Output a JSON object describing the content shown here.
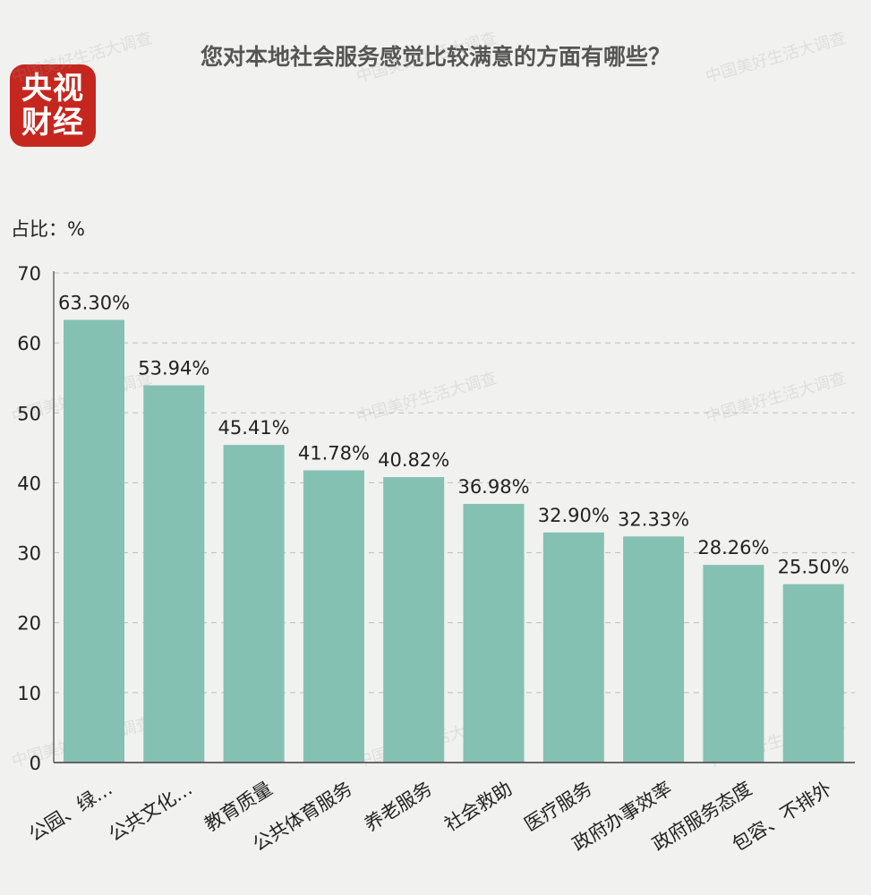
{
  "header": {
    "title": "您对本地社会服务感觉比较满意的方面有哪些？",
    "logo_line1": "央视",
    "logo_line2": "财经",
    "unit_label": "占比：%",
    "watermark": "中国美好生活大调查"
  },
  "colors": {
    "bar": "#84c1b3",
    "logo_bg": "#c5271f",
    "background": "#f1f1ef"
  },
  "chart_data": {
    "type": "bar",
    "title": "您对本地社会服务感觉比较满意的方面有哪些？",
    "ylabel": "占比：%",
    "ylim": [
      0,
      70
    ],
    "yticks": [
      0,
      10,
      20,
      30,
      40,
      50,
      60,
      70
    ],
    "grid": true,
    "categories": [
      "公园、绿…",
      "公共文化…",
      "教育质量",
      "公共体育服务",
      "养老服务",
      "社会救助",
      "医疗服务",
      "政府办事效率",
      "政府服务态度",
      "包容、不排外"
    ],
    "values": [
      63.3,
      53.94,
      45.41,
      41.78,
      40.82,
      36.98,
      32.9,
      32.33,
      28.26,
      25.5
    ],
    "data_labels": [
      "63.30%",
      "53.94%",
      "45.41%",
      "41.78%",
      "40.82%",
      "36.98%",
      "32.90%",
      "32.33%",
      "28.26%",
      "25.50%"
    ]
  }
}
